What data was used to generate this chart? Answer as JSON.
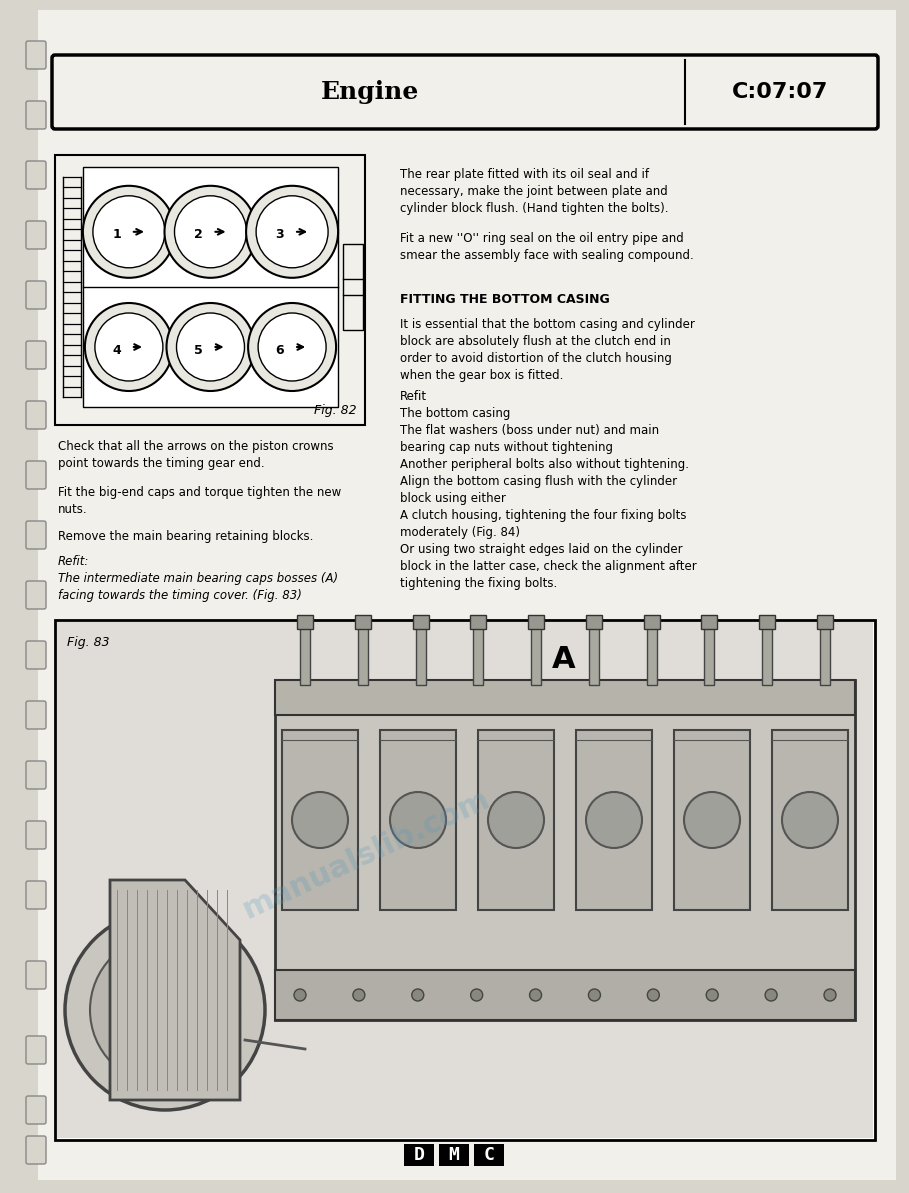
{
  "bg_color": "#d8d5cc",
  "page_color": "#f2f0ea",
  "header_text": "Engine",
  "header_code": "C:07:07",
  "fig82_caption": "Fig. 82",
  "fig83_caption": "Fig. 83",
  "label_A": "A",
  "body_text_right_1": "The rear plate fitted with its oil seal and if\nnecessary, make the joint between plate and\ncylinder block flush. (Hand tighten the bolts).",
  "body_text_right_2": "Fit a new ''O'' ring seal on the oil entry pipe and\nsmear the assembly face with sealing compound.",
  "body_text_right_heading": "FITTING THE BOTTOM CASING",
  "body_text_right_3": "It is essential that the bottom casing and cylinder\nblock are absolutely flush at the clutch end in\norder to avoid distortion of the clutch housing\nwhen the gear box is fitted.",
  "body_text_right_4": "Refit\nThe bottom casing\nThe flat washers (boss under nut) and main\nbearing cap nuts without tightening\nAnother peripheral bolts also without tightening.\nAlign the bottom casing flush with the cylinder\nblock using either\nA clutch housing, tightening the four fixing bolts\nmoderately (Fig. 84)\nOr using two straight edges laid on the cylinder\nblock in the latter case, check the alignment after\ntightening the fixing bolts.",
  "body_text_left_1": "Check that all the arrows on the piston crowns\npoint towards the timing gear end.",
  "body_text_left_2": "Fit the big-end caps and torque tighten the new\nnuts.",
  "body_text_left_3": "Remove the main bearing retaining blocks.",
  "body_text_left_4": "Refit:\nThe intermediate main bearing caps bosses (A)\nfacing towards the timing cover. (Fig. 83)",
  "watermark": "manualslib.com"
}
